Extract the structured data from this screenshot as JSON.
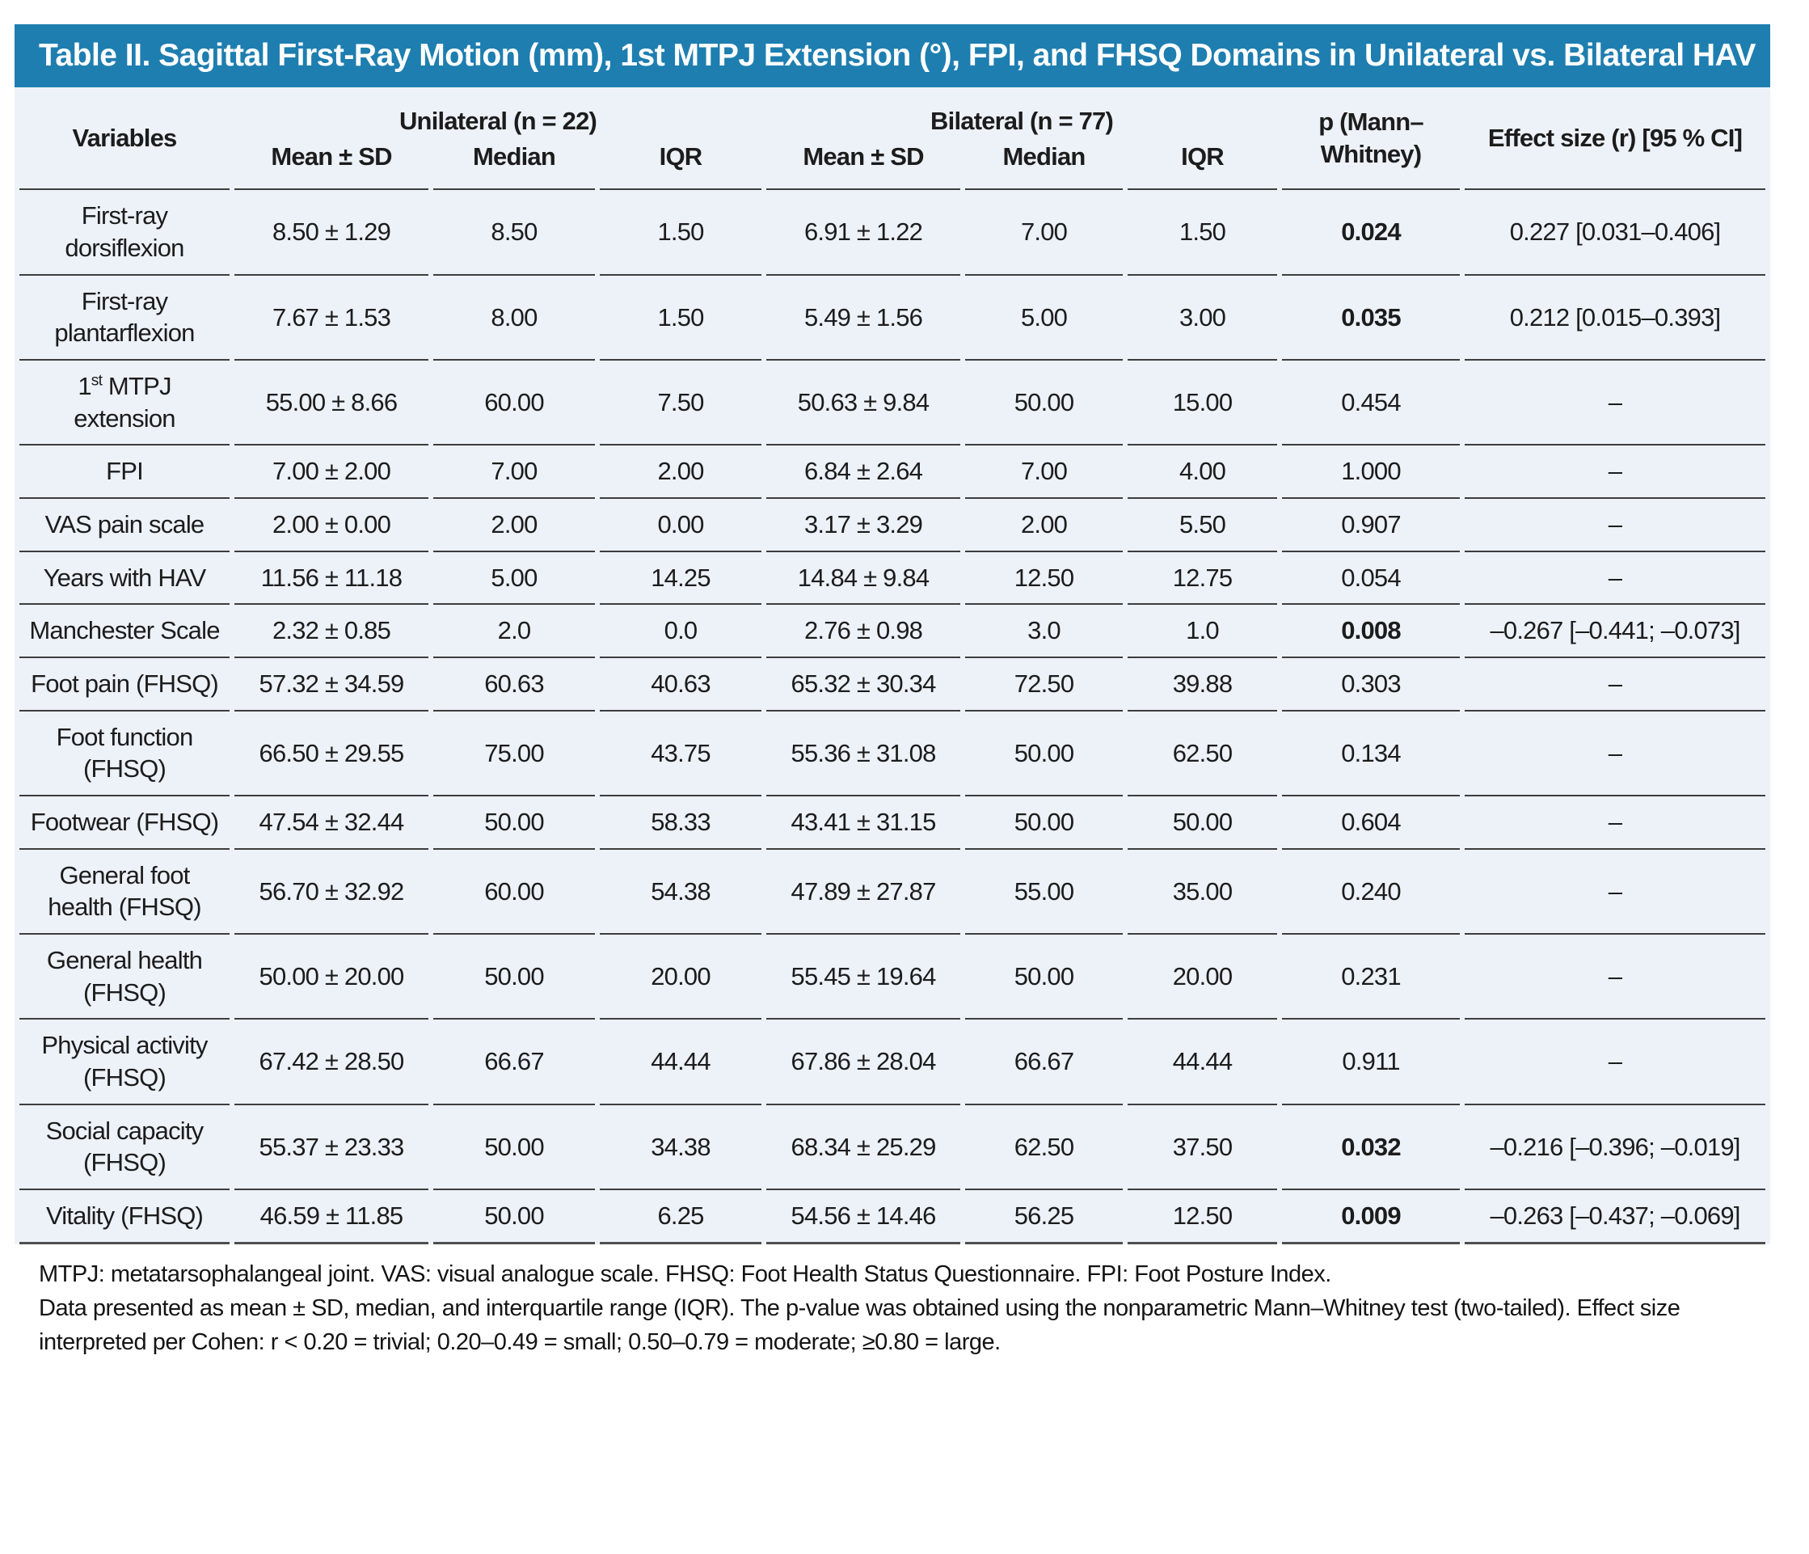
{
  "title": "Table II. Sagittal First-Ray Motion (mm), 1st MTPJ Extension (°), FPI, and FHSQ Domains in Unilateral vs. Bilateral HAV",
  "colors": {
    "title_bar_background": "#1e7eb0",
    "title_text": "#ffffff",
    "table_background": "#edf1f8",
    "row_separator": "#3d3d3d",
    "body_text": "#1c1c1c"
  },
  "header": {
    "variables": "Variables",
    "group_unilateral": "Unilateral (n = 22)",
    "group_bilateral": "Bilateral (n = 77)",
    "sub_mean_sd": "Mean ± SD",
    "sub_median": "Median",
    "sub_iqr": "IQR",
    "p_label": "p (Mann–Whitney)",
    "effect_label": "Effect size (r) [95 % CI]"
  },
  "table": {
    "rows": [
      {
        "variable": "First-ray dorsiflexion",
        "uni_mean_sd": "8.50 ± 1.29",
        "uni_median": "8.50",
        "uni_iqr": "1.50",
        "bil_mean_sd": "6.91 ± 1.22",
        "bil_median": "7.00",
        "bil_iqr": "1.50",
        "p": "0.024",
        "p_bold": true,
        "effect": "0.227 [0.031–0.406]"
      },
      {
        "variable": "First-ray plantarflexion",
        "uni_mean_sd": "7.67 ± 1.53",
        "uni_median": "8.00",
        "uni_iqr": "1.50",
        "bil_mean_sd": "5.49 ± 1.56",
        "bil_median": "5.00",
        "bil_iqr": "3.00",
        "p": "0.035",
        "p_bold": true,
        "effect": "0.212 [0.015–0.393]"
      },
      {
        "variable_pre": "1",
        "variable_sup": "st",
        "variable_post": " MTPJ extension",
        "uni_mean_sd": "55.00 ± 8.66",
        "uni_median": "60.00",
        "uni_iqr": "7.50",
        "bil_mean_sd": "50.63 ± 9.84",
        "bil_median": "50.00",
        "bil_iqr": "15.00",
        "p": "0.454",
        "p_bold": false,
        "effect": "–"
      },
      {
        "variable": "FPI",
        "uni_mean_sd": "7.00 ± 2.00",
        "uni_median": "7.00",
        "uni_iqr": "2.00",
        "bil_mean_sd": "6.84 ± 2.64",
        "bil_median": "7.00",
        "bil_iqr": "4.00",
        "p": "1.000",
        "p_bold": false,
        "effect": "–"
      },
      {
        "variable": "VAS pain scale",
        "uni_mean_sd": "2.00 ± 0.00",
        "uni_median": "2.00",
        "uni_iqr": "0.00",
        "bil_mean_sd": "3.17 ± 3.29",
        "bil_median": "2.00",
        "bil_iqr": "5.50",
        "p": "0.907",
        "p_bold": false,
        "effect": "–"
      },
      {
        "variable": "Years with HAV",
        "uni_mean_sd": "11.56 ± 11.18",
        "uni_median": "5.00",
        "uni_iqr": "14.25",
        "bil_mean_sd": "14.84 ± 9.84",
        "bil_median": "12.50",
        "bil_iqr": "12.75",
        "p": "0.054",
        "p_bold": false,
        "effect": "–"
      },
      {
        "variable": "Manchester Scale",
        "uni_mean_sd": "2.32 ± 0.85",
        "uni_median": "2.0",
        "uni_iqr": "0.0",
        "bil_mean_sd": "2.76 ± 0.98",
        "bil_median": "3.0",
        "bil_iqr": "1.0",
        "p": "0.008",
        "p_bold": true,
        "effect": "–0.267 [–0.441; –0.073]"
      },
      {
        "variable": "Foot pain (FHSQ)",
        "uni_mean_sd": "57.32 ± 34.59",
        "uni_median": "60.63",
        "uni_iqr": "40.63",
        "bil_mean_sd": "65.32 ± 30.34",
        "bil_median": "72.50",
        "bil_iqr": "39.88",
        "p": "0.303",
        "p_bold": false,
        "effect": "–"
      },
      {
        "variable": "Foot function (FHSQ)",
        "uni_mean_sd": "66.50 ± 29.55",
        "uni_median": "75.00",
        "uni_iqr": "43.75",
        "bil_mean_sd": "55.36 ± 31.08",
        "bil_median": "50.00",
        "bil_iqr": "62.50",
        "p": "0.134",
        "p_bold": false,
        "effect": "–"
      },
      {
        "variable": "Footwear (FHSQ)",
        "uni_mean_sd": "47.54 ± 32.44",
        "uni_median": "50.00",
        "uni_iqr": "58.33",
        "bil_mean_sd": "43.41 ± 31.15",
        "bil_median": "50.00",
        "bil_iqr": "50.00",
        "p": "0.604",
        "p_bold": false,
        "effect": "–"
      },
      {
        "variable": "General foot health (FHSQ)",
        "uni_mean_sd": "56.70 ± 32.92",
        "uni_median": "60.00",
        "uni_iqr": "54.38",
        "bil_mean_sd": "47.89 ± 27.87",
        "bil_median": "55.00",
        "bil_iqr": "35.00",
        "p": "0.240",
        "p_bold": false,
        "effect": "–"
      },
      {
        "variable": "General health (FHSQ)",
        "uni_mean_sd": "50.00 ± 20.00",
        "uni_median": "50.00",
        "uni_iqr": "20.00",
        "bil_mean_sd": "55.45 ± 19.64",
        "bil_median": "50.00",
        "bil_iqr": "20.00",
        "p": "0.231",
        "p_bold": false,
        "effect": "–"
      },
      {
        "variable": "Physical activity (FHSQ)",
        "uni_mean_sd": "67.42 ± 28.50",
        "uni_median": "66.67",
        "uni_iqr": "44.44",
        "bil_mean_sd": "67.86 ± 28.04",
        "bil_median": "66.67",
        "bil_iqr": "44.44",
        "p": "0.911",
        "p_bold": false,
        "effect": "–"
      },
      {
        "variable": "Social capacity (FHSQ)",
        "uni_mean_sd": "55.37 ± 23.33",
        "uni_median": "50.00",
        "uni_iqr": "34.38",
        "bil_mean_sd": "68.34 ± 25.29",
        "bil_median": "62.50",
        "bil_iqr": "37.50",
        "p": "0.032",
        "p_bold": true,
        "effect": "–0.216 [–0.396; –0.019]"
      },
      {
        "variable": "Vitality (FHSQ)",
        "uni_mean_sd": "46.59 ± 11.85",
        "uni_median": "50.00",
        "uni_iqr": "6.25",
        "bil_mean_sd": "54.56 ± 14.46",
        "bil_median": "56.25",
        "bil_iqr": "12.50",
        "p": "0.009",
        "p_bold": true,
        "effect": "–0.263 [–0.437; –0.069]"
      }
    ]
  },
  "footnotes": {
    "line1": "MTPJ: metatarsophalangeal joint. VAS: visual analogue scale. FHSQ: Foot Health Status Questionnaire. FPI: Foot Posture Index.",
    "line2": "Data presented as mean ± SD, median, and interquartile range (IQR). The p-value was obtained using the nonparametric Mann–Whitney test (two-tailed). Effect size interpreted per Cohen: r < 0.20 = trivial; 0.20–0.49 = small; 0.50–0.79 = moderate; ≥0.80 = large."
  }
}
